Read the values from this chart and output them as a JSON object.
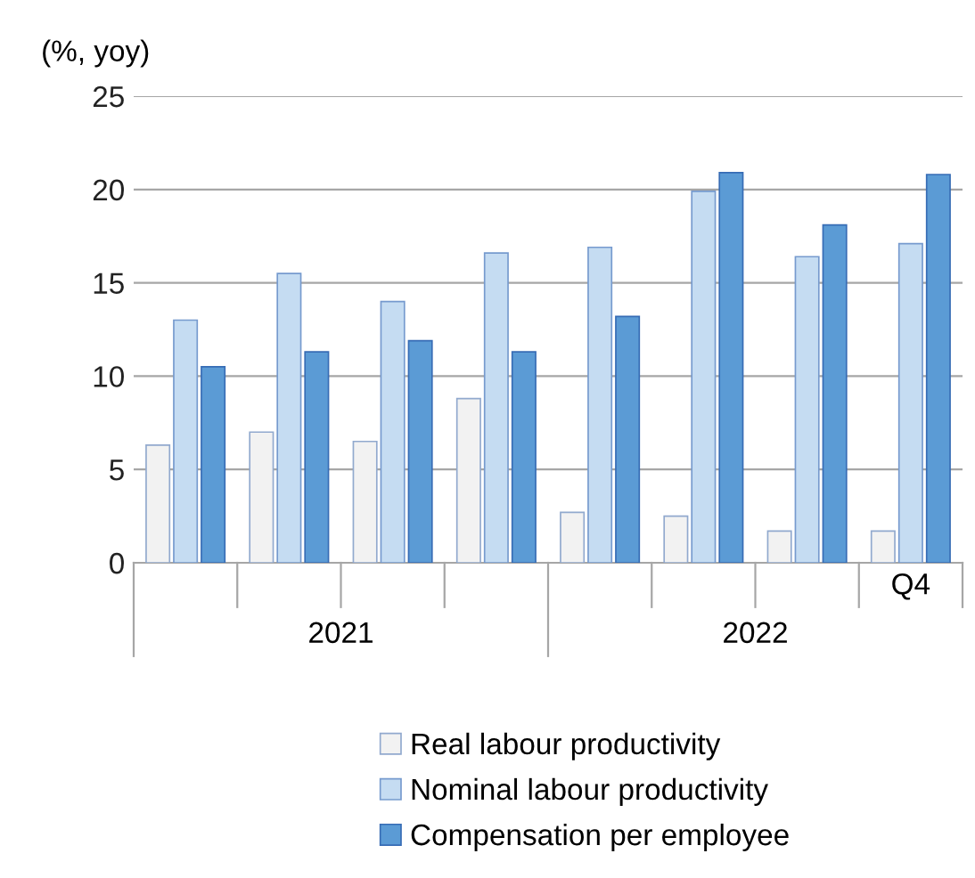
{
  "chart_data": {
    "type": "bar",
    "ylabel": "(%, yoy)",
    "categories": [
      null,
      null,
      null,
      null,
      null,
      null,
      null,
      "Q4"
    ],
    "annotations": [
      "2021",
      "2022"
    ],
    "series": [
      {
        "name": "Real labour productivity",
        "color": "#f2f2f2",
        "values": [
          6.3,
          7.0,
          6.5,
          8.8,
          2.7,
          2.5,
          1.7,
          1.7
        ]
      },
      {
        "name": "Nominal labour productivity",
        "color": "#c5dcf2",
        "values": [
          13.0,
          15.5,
          14.0,
          16.6,
          16.9,
          19.9,
          16.4,
          17.1
        ]
      },
      {
        "name": "Compensation per employee",
        "color": "#5b9bd5",
        "values": [
          10.5,
          11.3,
          11.9,
          11.3,
          13.2,
          20.9,
          18.1,
          20.8
        ]
      }
    ],
    "ylim": [
      0,
      25
    ],
    "yticks": [
      0,
      5,
      10,
      15,
      20,
      25
    ],
    "grid": "y",
    "legend": "bottom"
  }
}
